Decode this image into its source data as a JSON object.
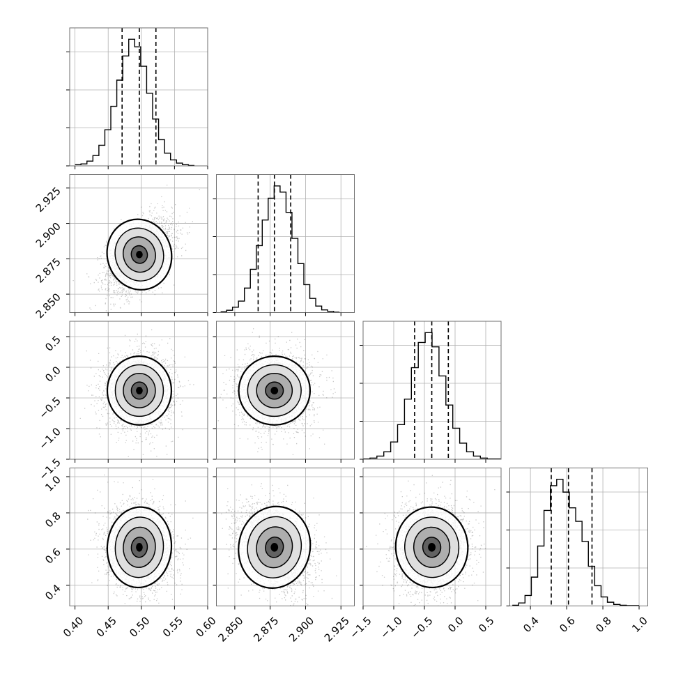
{
  "chart_data": {
    "type": "corner",
    "parameters": [
      {
        "ticks": [
          0.4,
          0.45,
          0.5,
          0.55,
          0.6
        ],
        "tick_labels": [
          "0.40",
          "0.45",
          "0.50",
          "0.55",
          "0.60"
        ],
        "range": [
          0.392,
          0.6
        ]
      },
      {
        "ticks": [
          2.85,
          2.875,
          2.9,
          2.925
        ],
        "tick_labels": [
          "2.850",
          "2.875",
          "2.900",
          "2.925"
        ],
        "range": [
          2.837,
          2.9345
        ]
      },
      {
        "ticks": [
          -1.5,
          -1.0,
          -0.5,
          0.0,
          0.5
        ],
        "tick_labels": [
          "−1.5",
          "−1.0",
          "−0.5",
          "0.0",
          "0.5"
        ],
        "range": [
          -1.5,
          0.75
        ]
      },
      {
        "ticks": [
          0.4,
          0.6,
          0.8,
          1.0
        ],
        "tick_labels": [
          "0.4",
          "0.6",
          "0.8",
          "1.0"
        ],
        "range": [
          0.286,
          1.048
        ]
      }
    ],
    "histograms": [
      {
        "bin_min": 0.4,
        "bin_max": 0.58,
        "counts": [
          3,
          5,
          12,
          26,
          52,
          91,
          150,
          216,
          277,
          319,
          300,
          251,
          183,
          118,
          66,
          32,
          15,
          7,
          3,
          1
        ],
        "quantiles": [
          0.471,
          0.497,
          0.522
        ]
      },
      {
        "bin_min": 2.84,
        "bin_max": 2.924,
        "counts": [
          2,
          6,
          14,
          30,
          64,
          113,
          175,
          242,
          299,
          331,
          315,
          262,
          194,
          128,
          73,
          37,
          17,
          7,
          3,
          1
        ],
        "quantiles": [
          2.8665,
          2.878,
          2.8895
        ]
      },
      {
        "bin_min": -1.5,
        "bin_max": 0.75,
        "counts": [
          1,
          3,
          8,
          19,
          44,
          88,
          153,
          233,
          297,
          322,
          286,
          212,
          138,
          79,
          41,
          19,
          8,
          3,
          1,
          1
        ],
        "quantiles": [
          -0.66,
          -0.38,
          -0.11
        ]
      },
      {
        "bin_min": 0.3,
        "bin_max": 1.0,
        "counts": [
          2,
          8,
          28,
          77,
          160,
          255,
          321,
          338,
          304,
          262,
          226,
          172,
          106,
          54,
          24,
          10,
          4,
          2,
          1,
          1
        ],
        "quantiles": [
          0.515,
          0.61,
          0.74
        ]
      }
    ],
    "pairs": [
      {
        "x": 0,
        "y": 1,
        "mean": [
          0.497,
          2.878
        ],
        "sd": [
          0.023,
          0.012
        ],
        "rho": 0.45
      },
      {
        "x": 0,
        "y": 2,
        "mean": [
          0.497,
          -0.38
        ],
        "sd": [
          0.023,
          0.28
        ],
        "rho": 0.0
      },
      {
        "x": 1,
        "y": 2,
        "mean": [
          2.878,
          -0.38
        ],
        "sd": [
          0.012,
          0.28
        ],
        "rho": 0.0
      },
      {
        "x": 0,
        "y": 3,
        "mean": [
          0.497,
          0.61
        ],
        "sd": [
          0.023,
          0.11
        ],
        "rho": -0.1
      },
      {
        "x": 1,
        "y": 3,
        "mean": [
          2.878,
          0.61
        ],
        "sd": [
          0.012,
          0.11
        ],
        "rho": -0.3
      },
      {
        "x": 2,
        "y": 3,
        "mean": [
          -0.38,
          0.61
        ],
        "sd": [
          0.28,
          0.11
        ],
        "rho": 0.1
      }
    ],
    "contour_levels": [
      "0.5-sigma",
      "1-sigma",
      "1.5-sigma",
      "2-sigma"
    ],
    "colors": {
      "density": "#000000",
      "lines": "#000000",
      "grid": "#b0b0b0",
      "background": "#ffffff"
    },
    "grid": true,
    "xlabel": "",
    "ylabel": ""
  }
}
